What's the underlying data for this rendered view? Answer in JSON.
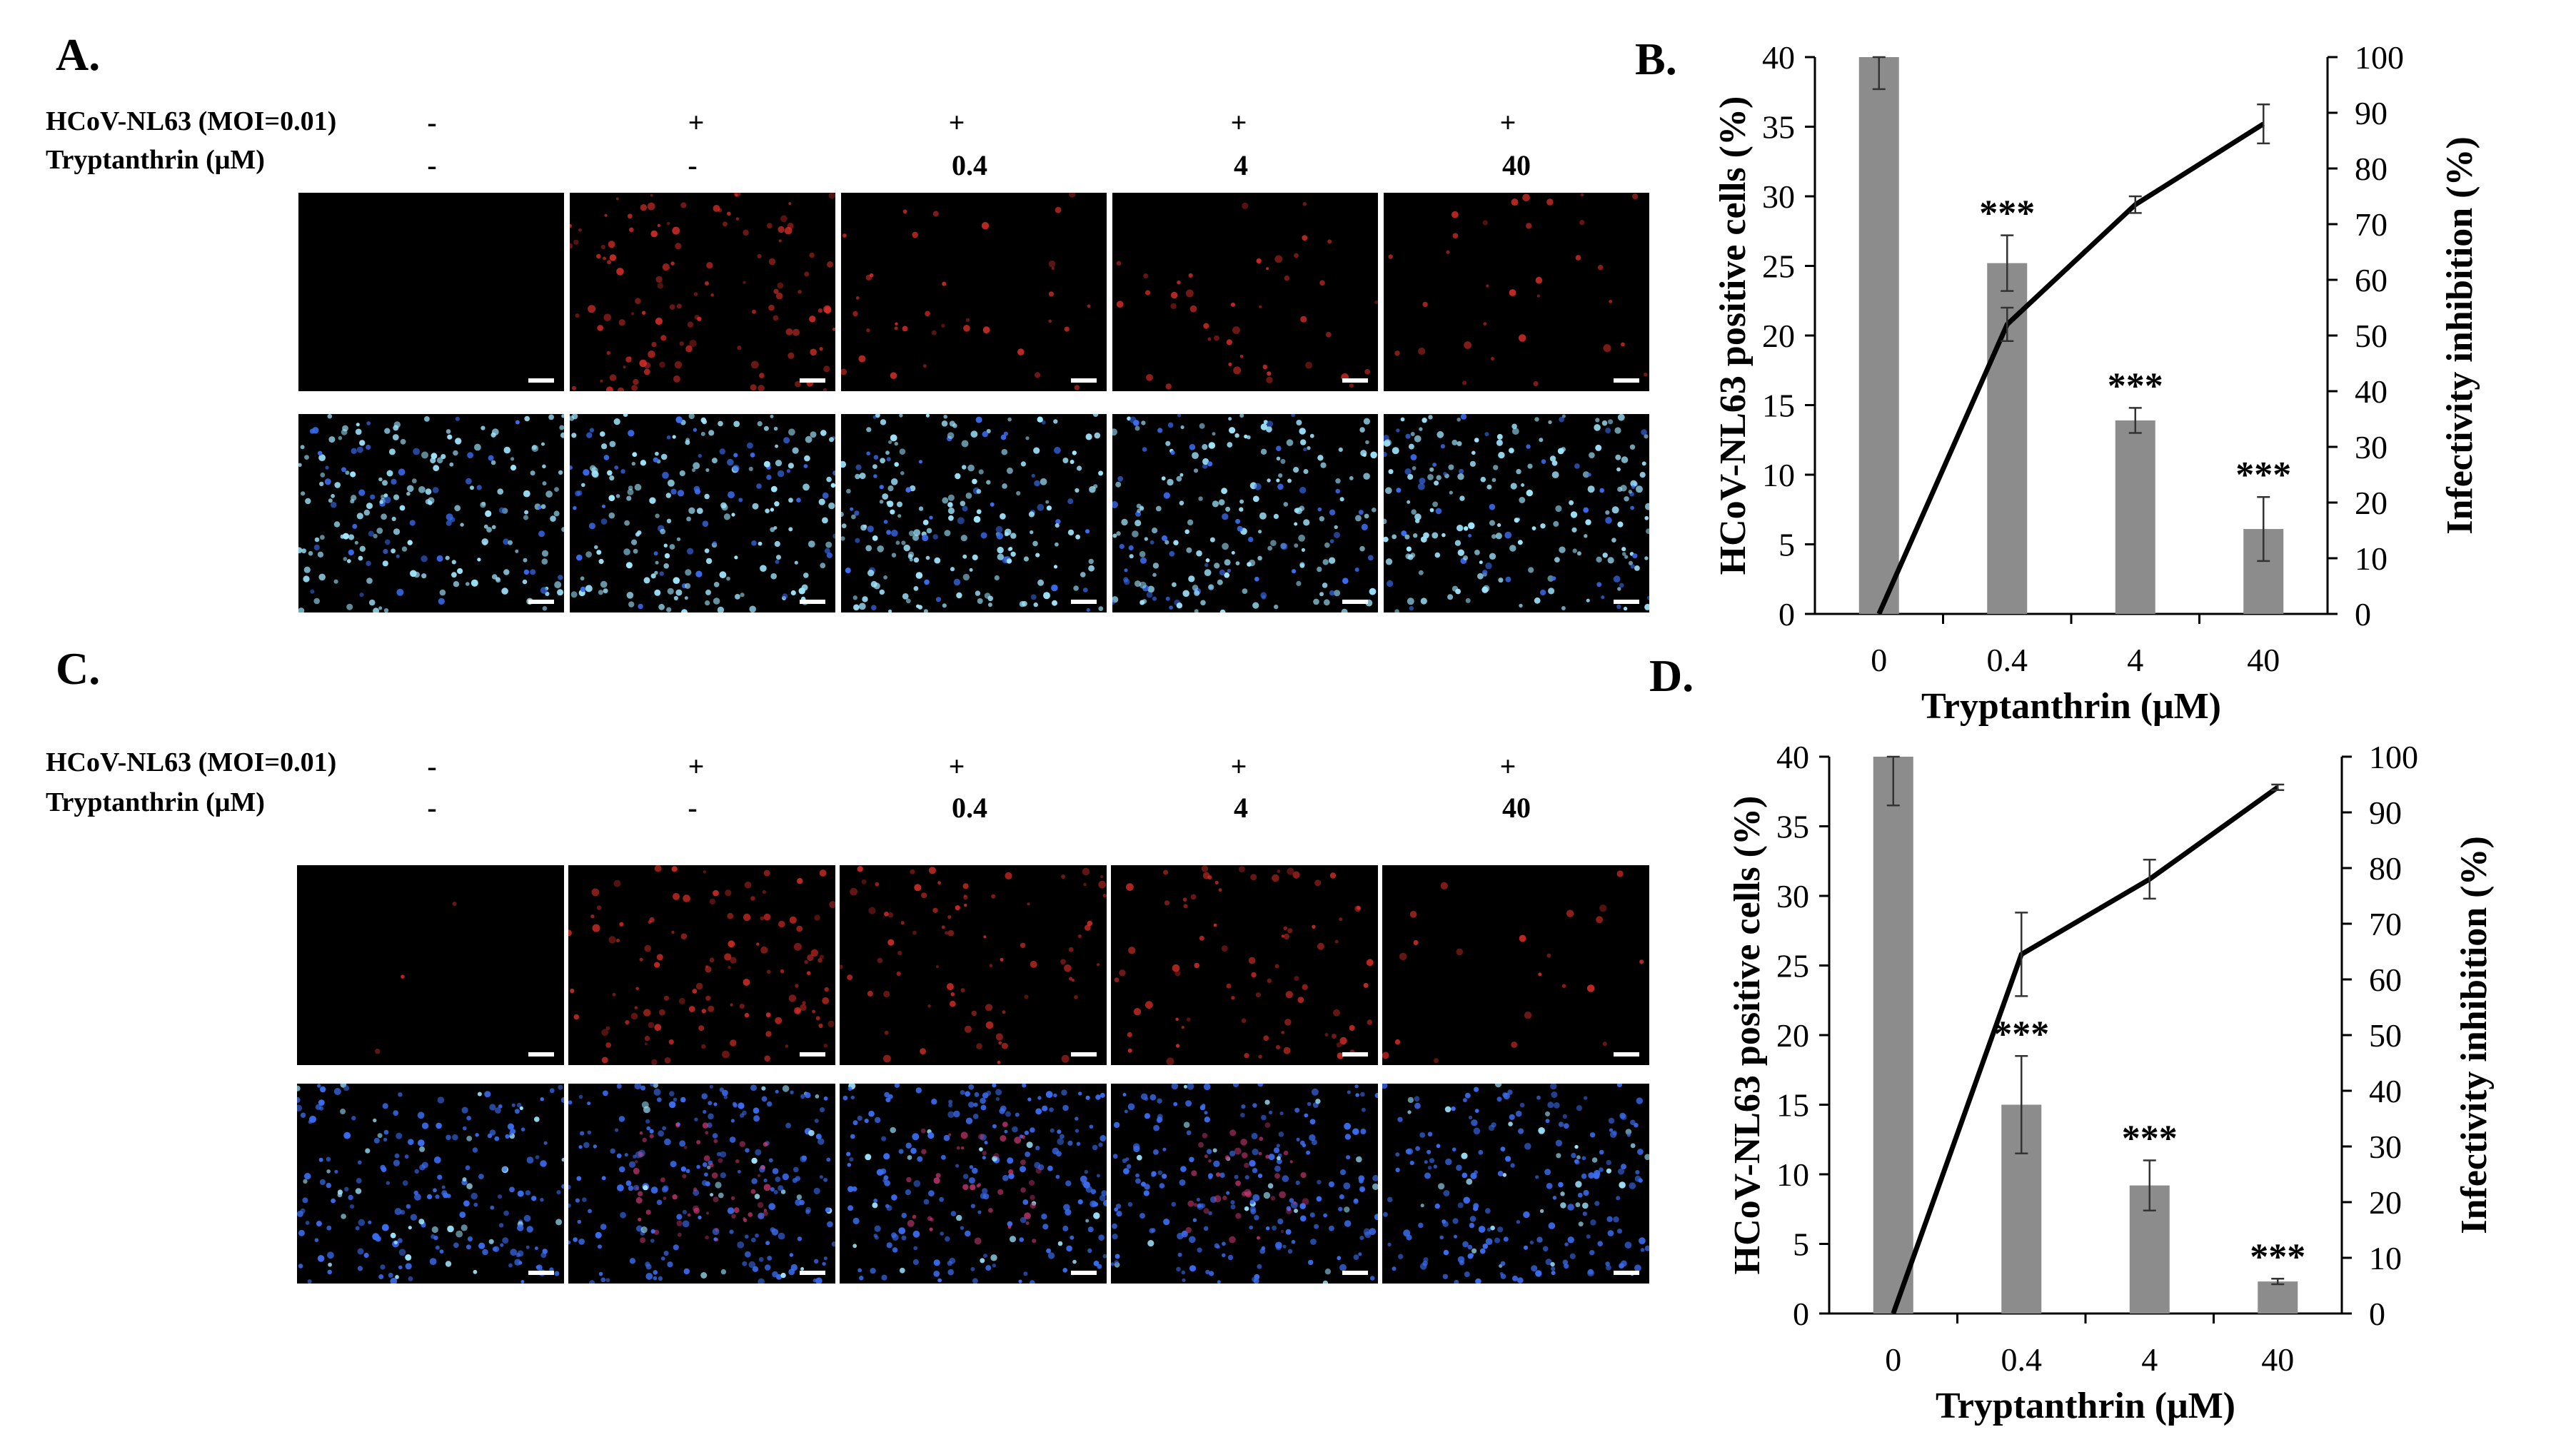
{
  "panel_labels": {
    "A": "A.",
    "B": "B.",
    "C": "C.",
    "D": "D."
  },
  "condition_table": {
    "row1_label": "HCoV-NL63 (MOI=0.01)",
    "row2_label": "Tryptanthrin  (μM)",
    "virus": [
      "-",
      "+",
      "+",
      "+",
      "+"
    ],
    "tryptanthrin": [
      "-",
      "-",
      "0.4",
      "4",
      "40"
    ]
  },
  "colors": {
    "bar": "#8c8c8c",
    "line": "#000000",
    "red_stain": "#e0302a",
    "blue_stain": "#3a6cf0",
    "cyan_stain": "#9fe6ff"
  },
  "microscopy": [
    {
      "panel": "A",
      "rows": [
        "red-fluorescence",
        "blue-merged"
      ],
      "red_levels": [
        0.0,
        0.85,
        0.25,
        0.3,
        0.22
      ]
    },
    {
      "panel": "C",
      "rows": [
        "red-fluorescence",
        "blue-merged"
      ],
      "red_levels": [
        0.02,
        0.8,
        0.55,
        0.55,
        0.15
      ]
    }
  ],
  "chart_data": [
    {
      "panel": "B",
      "type": "bar",
      "categories": [
        "0",
        "0.4",
        "4",
        "40"
      ],
      "xlabel": "Tryptanthrin  (μM)",
      "ylabel": "HCoV-NL63  positive cells (%)",
      "ylabel_right": "Infectivity inhibition  (%)",
      "ylim": [
        0,
        40
      ],
      "ylim_right": [
        0,
        100
      ],
      "yticks": [
        0,
        5,
        10,
        15,
        20,
        25,
        30,
        35,
        40
      ],
      "yticks_right": [
        0,
        10,
        20,
        30,
        40,
        50,
        60,
        70,
        80,
        90,
        100
      ],
      "series": [
        {
          "name": "HCoV-NL63 positive cells",
          "kind": "bar",
          "axis": "left",
          "values": [
            40,
            25.2,
            13.9,
            6.1
          ],
          "errors": [
            2.3,
            2.0,
            0.9,
            2.3
          ]
        },
        {
          "name": "Infectivity inhibition",
          "kind": "line",
          "axis": "right",
          "values": [
            0,
            52,
            73.5,
            88
          ],
          "errors": [
            0,
            3,
            1.5,
            3.5
          ]
        }
      ],
      "annotations": [
        "",
        "***",
        "***",
        "***"
      ]
    },
    {
      "panel": "D",
      "type": "bar",
      "categories": [
        "0",
        "0.4",
        "4",
        "40"
      ],
      "xlabel": "Tryptanthrin  (μM)",
      "ylabel": "HCoV-NL63  positive cells (%)",
      "ylabel_right": "Infectivity inhibition  (%)",
      "ylim": [
        0,
        40
      ],
      "ylim_right": [
        0,
        100
      ],
      "yticks": [
        0,
        5,
        10,
        15,
        20,
        25,
        30,
        35,
        40
      ],
      "yticks_right": [
        0,
        10,
        20,
        30,
        40,
        50,
        60,
        70,
        80,
        90,
        100
      ],
      "series": [
        {
          "name": "HCoV-NL63 positive cells",
          "kind": "bar",
          "axis": "left",
          "values": [
            40,
            15.0,
            9.2,
            2.3
          ],
          "errors": [
            3.5,
            3.5,
            1.8,
            0.2
          ]
        },
        {
          "name": "Infectivity inhibition",
          "kind": "line",
          "axis": "right",
          "values": [
            0,
            64.5,
            78,
            94.5
          ],
          "errors": [
            0,
            7.5,
            3.5,
            0.5
          ]
        }
      ],
      "annotations": [
        "",
        "***",
        "***",
        "***"
      ]
    }
  ]
}
